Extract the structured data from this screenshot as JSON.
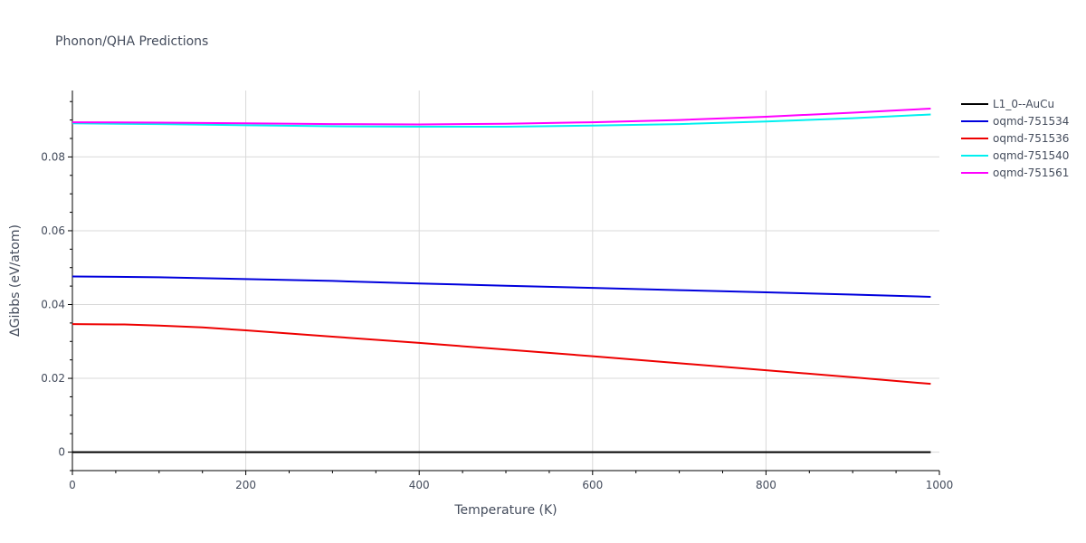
{
  "chart_data": {
    "type": "line",
    "title": "Phonon/QHA Predictions",
    "xlabel": "Temperature (K)",
    "ylabel": "ΔGibbs (eV/atom)",
    "xlim": [
      0,
      1000
    ],
    "ylim": [
      -0.005,
      0.098
    ],
    "xticks": [
      0,
      200,
      400,
      600,
      800,
      1000
    ],
    "yticks": [
      0,
      0.02,
      0.04,
      0.06,
      0.08
    ],
    "xtick_labels": [
      "0",
      "200",
      "400",
      "600",
      "800",
      "1000"
    ],
    "ytick_labels": [
      "0",
      "0.02",
      "0.04",
      "0.06",
      "0.08"
    ],
    "grid": true,
    "legend_position": "top-right",
    "series": [
      {
        "name": "L1_0--AuCu",
        "color": "#000000",
        "x": [
          0,
          100,
          200,
          300,
          400,
          500,
          600,
          700,
          800,
          900,
          990
        ],
        "y": [
          0,
          0,
          0,
          0,
          0,
          0,
          0,
          0,
          0,
          0,
          0
        ]
      },
      {
        "name": "oqmd-751534",
        "color": "#0000dd",
        "x": [
          0,
          50,
          100,
          200,
          300,
          400,
          500,
          600,
          700,
          800,
          900,
          990
        ],
        "y": [
          0.0476,
          0.0475,
          0.0474,
          0.0469,
          0.0464,
          0.0457,
          0.0451,
          0.0445,
          0.0439,
          0.0433,
          0.0427,
          0.0421
        ]
      },
      {
        "name": "oqmd-751536",
        "color": "#ee0000",
        "x": [
          0,
          60,
          100,
          150,
          200,
          300,
          400,
          500,
          600,
          700,
          800,
          900,
          990
        ],
        "y": [
          0.0347,
          0.0346,
          0.0343,
          0.0338,
          0.033,
          0.0313,
          0.0296,
          0.0278,
          0.026,
          0.0241,
          0.0222,
          0.0203,
          0.0185
        ]
      },
      {
        "name": "oqmd-751540",
        "color": "#00f0f0",
        "x": [
          0,
          100,
          200,
          300,
          400,
          500,
          600,
          700,
          800,
          900,
          990
        ],
        "y": [
          0.0891,
          0.0889,
          0.0886,
          0.0883,
          0.0882,
          0.0882,
          0.0885,
          0.0889,
          0.0896,
          0.0905,
          0.0915
        ]
      },
      {
        "name": "oqmd-751561",
        "color": "#ff00ff",
        "x": [
          0,
          100,
          200,
          300,
          400,
          500,
          600,
          700,
          800,
          900,
          990
        ],
        "y": [
          0.0894,
          0.0893,
          0.0891,
          0.0889,
          0.0888,
          0.089,
          0.0894,
          0.09,
          0.0909,
          0.092,
          0.0931
        ]
      }
    ]
  }
}
